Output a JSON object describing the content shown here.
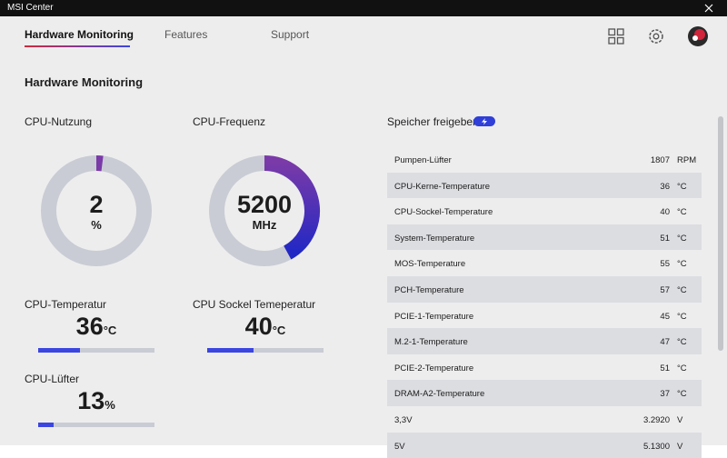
{
  "window_title": "MSI Center",
  "tabs": [
    "Hardware Monitoring",
    "Features",
    "Support"
  ],
  "section_title": "Hardware Monitoring",
  "gauges": [
    {
      "label": "CPU-Nutzung",
      "value": "2",
      "unit": "%",
      "fill_percent": 2
    },
    {
      "label": "CPU-Frequenz",
      "value": "5200",
      "unit": "MHz",
      "fill_percent": 42
    }
  ],
  "meters": [
    {
      "label": "CPU-Temperatur",
      "value": 36,
      "unit": "°C"
    },
    {
      "label": "CPU Sockel Temeperatur",
      "value": 40,
      "unit": "°C"
    },
    {
      "label": "CPU-Lüfter",
      "value": 13,
      "unit": "%"
    }
  ],
  "sensors": {
    "button": "Speicher freigeben",
    "rows": [
      [
        "Pumpen-Lüfter",
        "1807",
        "RPM"
      ],
      [
        "CPU-Kerne-Temperature",
        "36",
        "°C"
      ],
      [
        "CPU-Sockel-Temperature",
        "40",
        "°C"
      ],
      [
        "System-Temperature",
        "51",
        "°C"
      ],
      [
        "MOS-Temperature",
        "55",
        "°C"
      ],
      [
        "PCH-Temperature",
        "57",
        "°C"
      ],
      [
        "PCIE-1-Temperature",
        "45",
        "°C"
      ],
      [
        "M.2-1-Temperature",
        "47",
        "°C"
      ],
      [
        "PCIE-2-Temperature",
        "51",
        "°C"
      ],
      [
        "DRAM-A2-Temperature",
        "37",
        "°C"
      ],
      [
        "3,3V",
        "3.2920",
        "V"
      ],
      [
        "5V",
        "5.1300",
        "V"
      ]
    ]
  }
}
